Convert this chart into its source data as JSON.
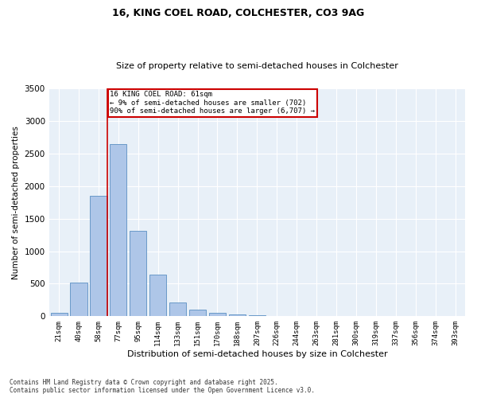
{
  "title1": "16, KING COEL ROAD, COLCHESTER, CO3 9AG",
  "title2": "Size of property relative to semi-detached houses in Colchester",
  "xlabel": "Distribution of semi-detached houses by size in Colchester",
  "ylabel": "Number of semi-detached properties",
  "categories": [
    "21sqm",
    "40sqm",
    "58sqm",
    "77sqm",
    "95sqm",
    "114sqm",
    "133sqm",
    "151sqm",
    "170sqm",
    "188sqm",
    "207sqm",
    "226sqm",
    "244sqm",
    "263sqm",
    "281sqm",
    "300sqm",
    "319sqm",
    "337sqm",
    "356sqm",
    "374sqm",
    "393sqm"
  ],
  "values": [
    55,
    520,
    1850,
    2640,
    1310,
    640,
    210,
    100,
    55,
    30,
    15,
    10,
    5,
    2,
    1,
    0,
    0,
    0,
    0,
    0,
    0
  ],
  "bar_color": "#aec6e8",
  "bar_edge_color": "#5a8fc2",
  "vline_x": 2,
  "vline_color": "#cc0000",
  "annotation_text": "16 KING COEL ROAD: 61sqm\n← 9% of semi-detached houses are smaller (702)\n90% of semi-detached houses are larger (6,707) →",
  "annotation_box_color": "#ffffff",
  "annotation_box_edge_color": "#cc0000",
  "ylim": [
    0,
    3500
  ],
  "background_color": "#e8f0f8",
  "footer1": "Contains HM Land Registry data © Crown copyright and database right 2025.",
  "footer2": "Contains public sector information licensed under the Open Government Licence v3.0."
}
